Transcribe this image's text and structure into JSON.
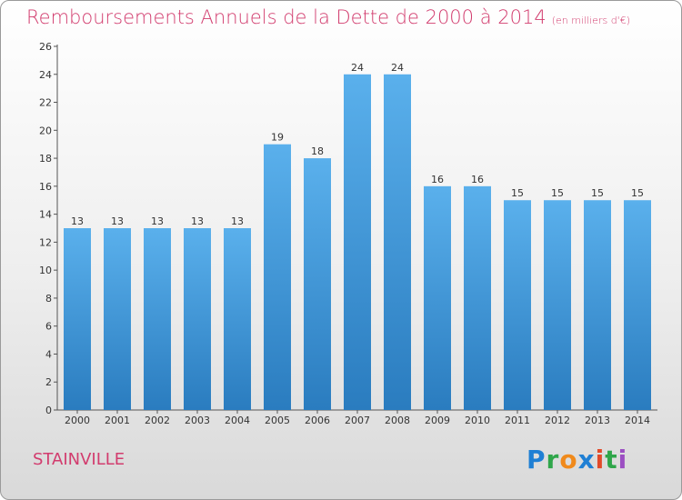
{
  "chart_data": {
    "type": "bar",
    "title": "Remboursements Annuels de la Dette de 2000 à 2014",
    "subtitle": "(en milliers d'€)",
    "categories": [
      "2000",
      "2001",
      "2002",
      "2003",
      "2004",
      "2005",
      "2006",
      "2007",
      "2008",
      "2009",
      "2010",
      "2011",
      "2012",
      "2013",
      "2014"
    ],
    "values": [
      13,
      13,
      13,
      13,
      13,
      19,
      18,
      24,
      24,
      16,
      16,
      15,
      15,
      15,
      15
    ],
    "data_labels": [
      "13",
      "13",
      "13",
      "13",
      "13",
      "19",
      "18",
      "24",
      "24",
      "16",
      "16",
      "15",
      "15",
      "15",
      "15"
    ],
    "ylim": [
      0,
      26
    ],
    "yticks": [
      0,
      2,
      4,
      6,
      8,
      10,
      12,
      14,
      16,
      18,
      20,
      22,
      24,
      26
    ],
    "xlabel": "",
    "ylabel": "",
    "grid": false,
    "bar_color": "#4a9ede"
  },
  "footer": {
    "place": "STAINVILLE",
    "logo_text": "Proxiti"
  },
  "colors": {
    "accent": "#d23c6e",
    "bar": "#4a9ede"
  }
}
